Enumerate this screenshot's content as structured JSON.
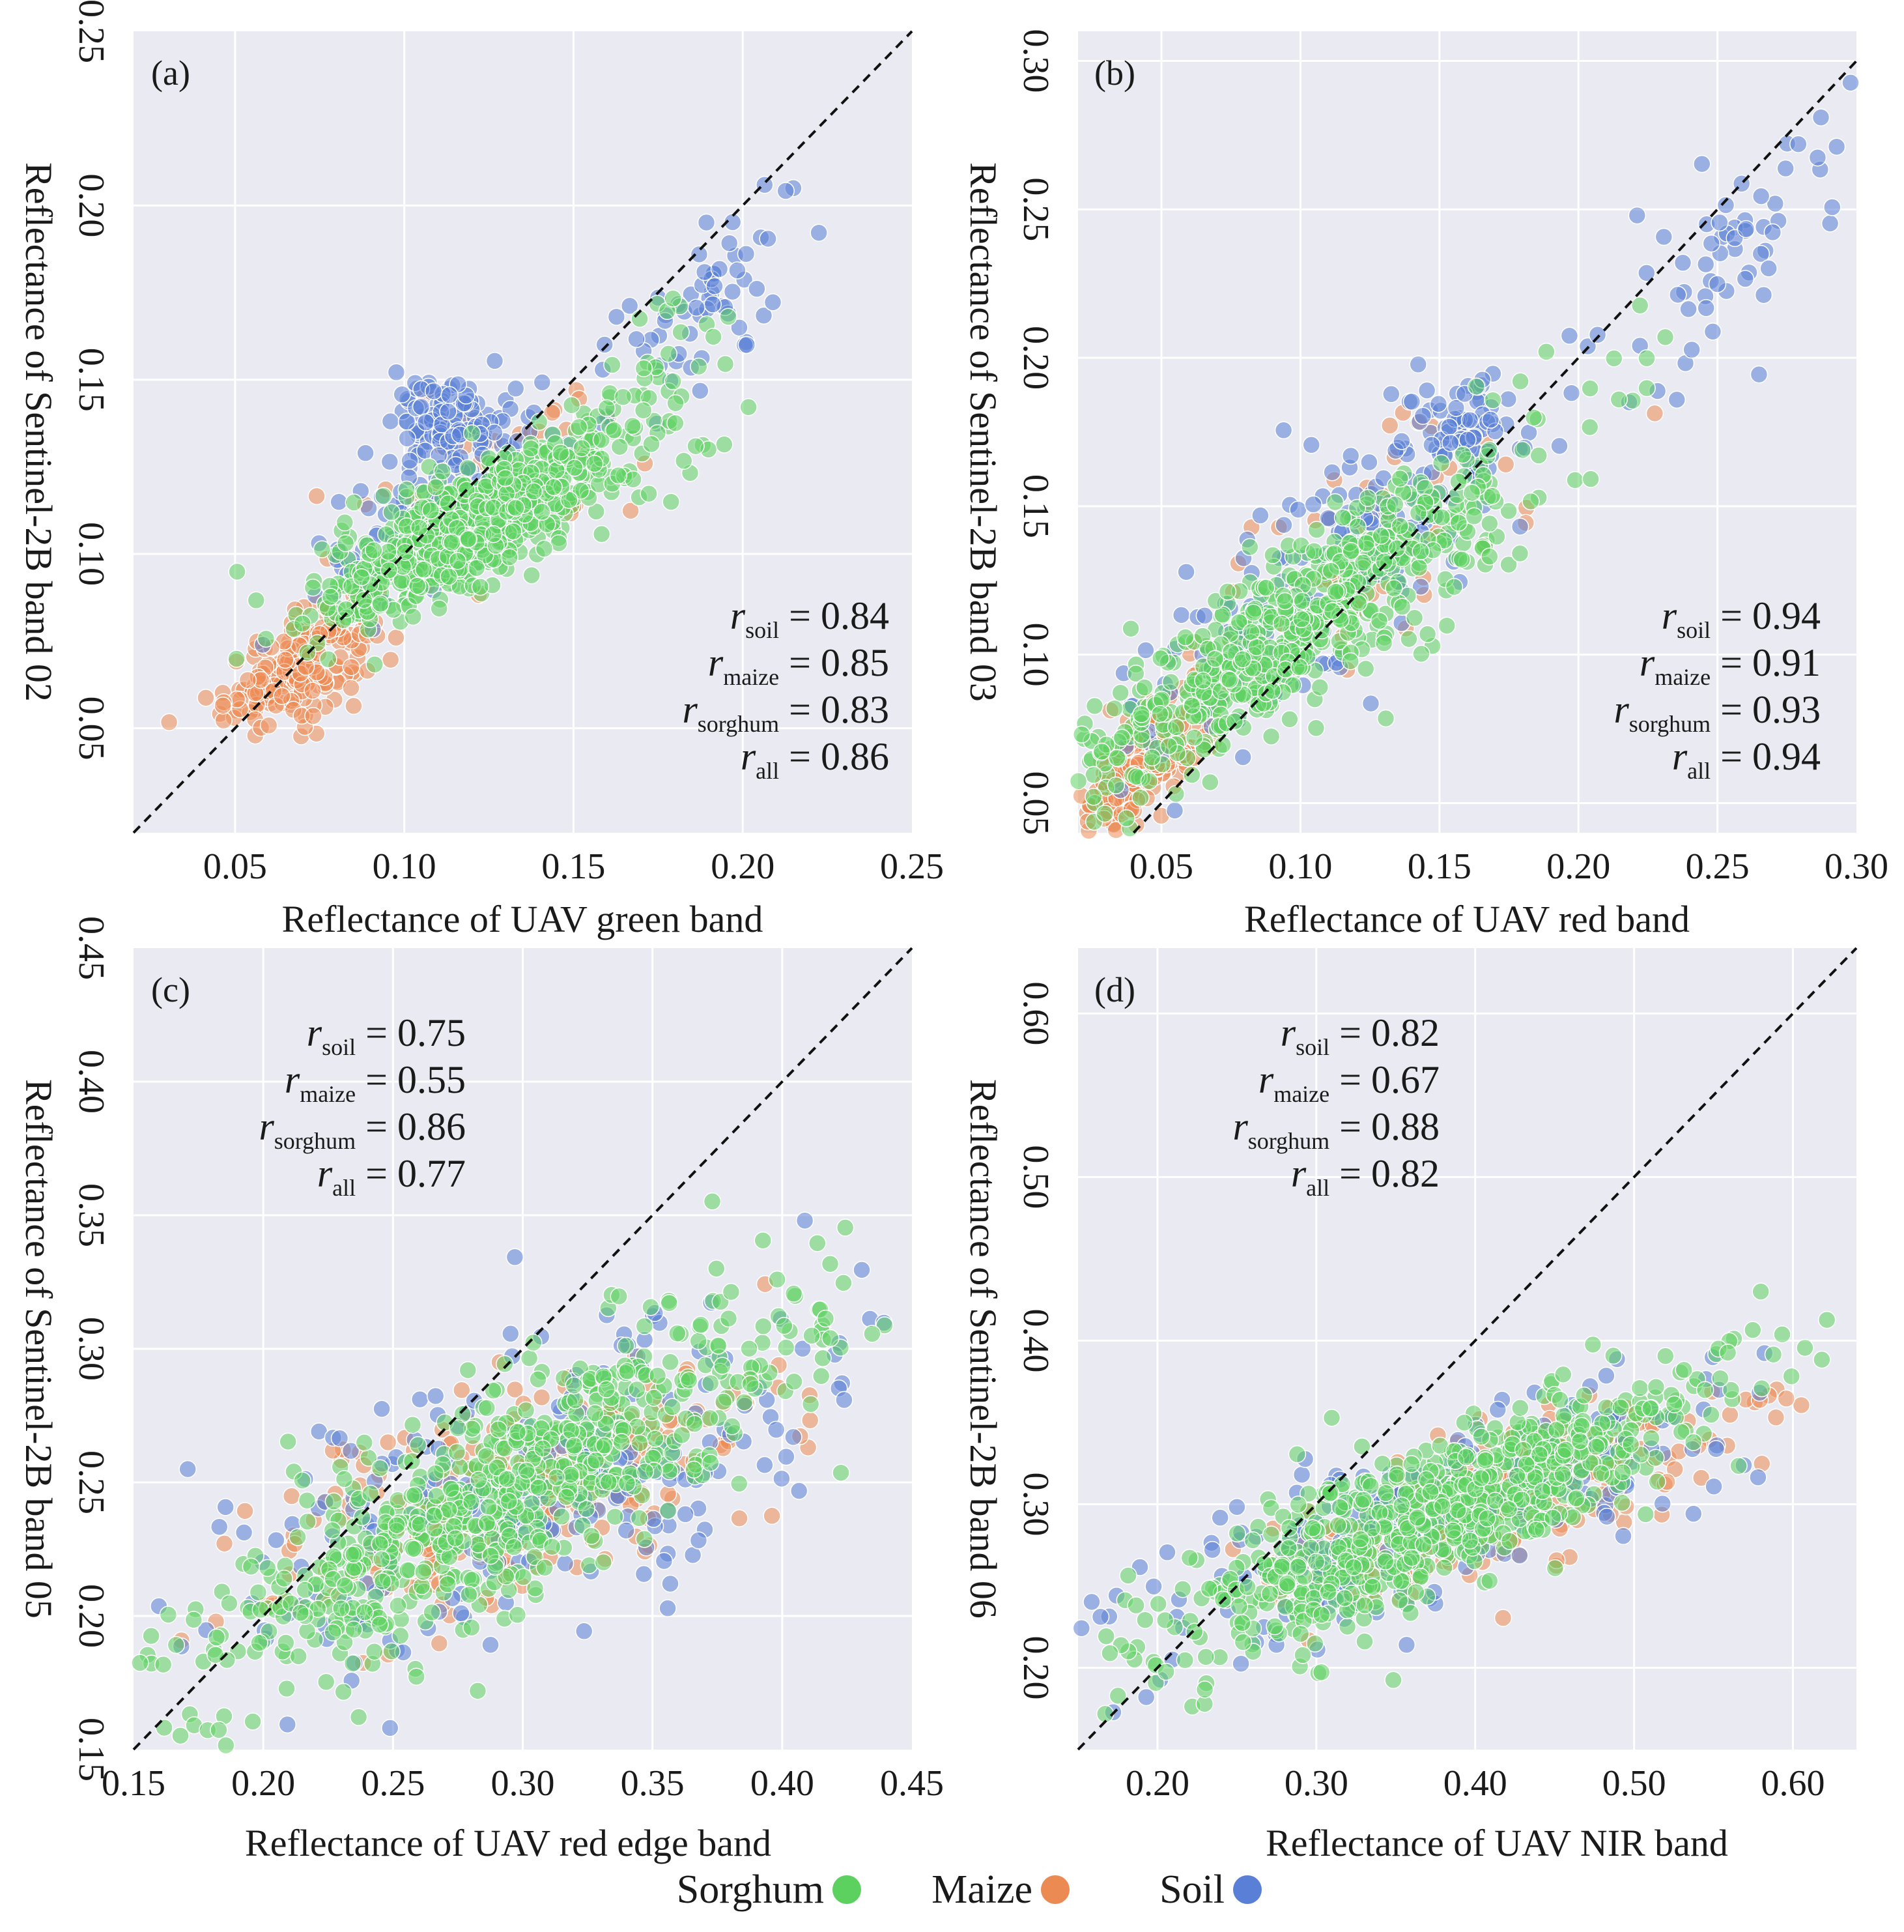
{
  "chart_data": [
    {
      "type": "scatter",
      "panel_label": "(a)",
      "xlabel": "Reflectance of UAV green band",
      "ylabel": "Reflectance of Sentinel-2B band 02",
      "xlim": [
        0.02,
        0.25
      ],
      "ylim": [
        0.02,
        0.25
      ],
      "xticks": [
        "0.05",
        "0.10",
        "0.15",
        "0.20",
        "0.25"
      ],
      "yticks": [
        "0.05",
        "0.10",
        "0.15",
        "0.20",
        "0.25"
      ],
      "tick_values": [
        0.05,
        0.1,
        0.15,
        0.2,
        0.25
      ],
      "identity_line": true,
      "stats_position": "bottom-right",
      "stats": [
        {
          "sub": "soil",
          "value": "= 0.84"
        },
        {
          "sub": "maize",
          "value": "= 0.85"
        },
        {
          "sub": "sorghum",
          "value": "= 0.83"
        },
        {
          "sub": "all",
          "value": "= 0.86"
        }
      ],
      "clusters": [
        {
          "series": "Maize",
          "cx": 0.069,
          "cy": 0.068,
          "sx": 0.011,
          "sy": 0.009,
          "rho": 0.6,
          "n": 200
        },
        {
          "series": "Maize",
          "cx": 0.12,
          "cy": 0.115,
          "sx": 0.025,
          "sy": 0.015,
          "rho": 0.6,
          "n": 50
        },
        {
          "series": "Soil",
          "cx": 0.113,
          "cy": 0.14,
          "sx": 0.008,
          "sy": 0.006,
          "rho": 0.3,
          "n": 90
        },
        {
          "series": "Soil",
          "cx": 0.11,
          "cy": 0.115,
          "sx": 0.018,
          "sy": 0.015,
          "rho": 0.6,
          "n": 120
        },
        {
          "series": "Soil",
          "cx": 0.19,
          "cy": 0.175,
          "sx": 0.013,
          "sy": 0.015,
          "rho": 0.4,
          "n": 60
        },
        {
          "series": "Sorghum",
          "cx": 0.12,
          "cy": 0.108,
          "sx": 0.022,
          "sy": 0.014,
          "rho": 0.8,
          "n": 650
        },
        {
          "series": "Sorghum",
          "cx": 0.17,
          "cy": 0.14,
          "sx": 0.015,
          "sy": 0.015,
          "rho": 0.5,
          "n": 60
        }
      ]
    },
    {
      "type": "scatter",
      "panel_label": "(b)",
      "xlabel": "Reflectance of UAV red band",
      "ylabel": "Reflectance of Sentinel-2B band 03",
      "xlim": [
        0.02,
        0.3
      ],
      "ylim": [
        0.04,
        0.31
      ],
      "xticks": [
        "0.05",
        "0.10",
        "0.15",
        "0.20",
        "0.25",
        "0.30"
      ],
      "yticks": [
        "0.05",
        "0.10",
        "0.15",
        "0.20",
        "0.25",
        "0.30"
      ],
      "tick_values_x": [
        0.05,
        0.1,
        0.15,
        0.2,
        0.25,
        0.3
      ],
      "tick_values_y": [
        0.05,
        0.1,
        0.15,
        0.2,
        0.25,
        0.3
      ],
      "identity_line": true,
      "stats_position": "bottom-right",
      "stats": [
        {
          "sub": "soil",
          "value": "= 0.94"
        },
        {
          "sub": "maize",
          "value": "= 0.91"
        },
        {
          "sub": "sorghum",
          "value": "= 0.93"
        },
        {
          "sub": "all",
          "value": "= 0.94"
        }
      ],
      "clusters": [
        {
          "series": "Maize",
          "cx": 0.045,
          "cy": 0.065,
          "sx": 0.014,
          "sy": 0.015,
          "rho": 0.8,
          "n": 220
        },
        {
          "series": "Maize",
          "cx": 0.12,
          "cy": 0.13,
          "sx": 0.04,
          "sy": 0.03,
          "rho": 0.7,
          "n": 60
        },
        {
          "series": "Soil",
          "cx": 0.11,
          "cy": 0.13,
          "sx": 0.035,
          "sy": 0.03,
          "rho": 0.8,
          "n": 180
        },
        {
          "series": "Soil",
          "cx": 0.155,
          "cy": 0.175,
          "sx": 0.01,
          "sy": 0.01,
          "rho": 0.3,
          "n": 60
        },
        {
          "series": "Soil",
          "cx": 0.25,
          "cy": 0.23,
          "sx": 0.022,
          "sy": 0.022,
          "rho": 0.7,
          "n": 60
        },
        {
          "series": "Sorghum",
          "cx": 0.1,
          "cy": 0.11,
          "sx": 0.045,
          "sy": 0.032,
          "rho": 0.9,
          "n": 600
        }
      ]
    },
    {
      "type": "scatter",
      "panel_label": "(c)",
      "xlabel": "Reflectance of UAV red edge band",
      "ylabel": "Reflectance of Sentinel-2B band 05",
      "xlim": [
        0.15,
        0.45
      ],
      "ylim": [
        0.15,
        0.45
      ],
      "xticks": [
        "0.15",
        "0.20",
        "0.25",
        "0.30",
        "0.35",
        "0.40",
        "0.45"
      ],
      "yticks": [
        "0.15",
        "0.20",
        "0.25",
        "0.30",
        "0.35",
        "0.40",
        "0.45"
      ],
      "tick_values": [
        0.15,
        0.2,
        0.25,
        0.3,
        0.35,
        0.4,
        0.45
      ],
      "identity_line": true,
      "stats_position": "top-left",
      "stats": [
        {
          "sub": "soil",
          "value": "= 0.75"
        },
        {
          "sub": "maize",
          "value": "= 0.55"
        },
        {
          "sub": "sorghum",
          "value": "= 0.86"
        },
        {
          "sub": "all",
          "value": "= 0.77"
        }
      ],
      "clusters": [
        {
          "series": "Maize",
          "cx": 0.3,
          "cy": 0.245,
          "sx": 0.05,
          "sy": 0.025,
          "rho": 0.6,
          "n": 260
        },
        {
          "series": "Soil",
          "cx": 0.3,
          "cy": 0.245,
          "sx": 0.06,
          "sy": 0.035,
          "rho": 0.6,
          "n": 260
        },
        {
          "series": "Sorghum",
          "cx": 0.29,
          "cy": 0.245,
          "sx": 0.06,
          "sy": 0.038,
          "rho": 0.85,
          "n": 700
        }
      ]
    },
    {
      "type": "scatter",
      "panel_label": "(d)",
      "xlabel": "Reflectance of UAV NIR band",
      "ylabel": "Reflectance of Sentinel-2B band 06",
      "xlim": [
        0.15,
        0.64
      ],
      "ylim": [
        0.15,
        0.64
      ],
      "xticks": [
        "0.20",
        "0.30",
        "0.40",
        "0.50",
        "0.60"
      ],
      "yticks": [
        "0.20",
        "0.30",
        "0.40",
        "0.50",
        "0.60"
      ],
      "tick_values": [
        0.2,
        0.3,
        0.4,
        0.5,
        0.6
      ],
      "identity_line": true,
      "stats_position": "top-left",
      "stats": [
        {
          "sub": "soil",
          "value": "= 0.82"
        },
        {
          "sub": "maize",
          "value": "= 0.67"
        },
        {
          "sub": "sorghum",
          "value": "= 0.88"
        },
        {
          "sub": "all",
          "value": "= 0.82"
        }
      ],
      "clusters": [
        {
          "series": "Maize",
          "cx": 0.41,
          "cy": 0.3,
          "sx": 0.07,
          "sy": 0.03,
          "rho": 0.7,
          "n": 280
        },
        {
          "series": "Soil",
          "cx": 0.37,
          "cy": 0.29,
          "sx": 0.09,
          "sy": 0.04,
          "rho": 0.75,
          "n": 260
        },
        {
          "series": "Sorghum",
          "cx": 0.37,
          "cy": 0.29,
          "sx": 0.09,
          "sy": 0.045,
          "rho": 0.85,
          "n": 700
        }
      ]
    }
  ],
  "legend": [
    {
      "name": "Sorghum",
      "color": "#5dd160"
    },
    {
      "name": "Maize",
      "color": "#ec8a54"
    },
    {
      "name": "Soil",
      "color": "#5a7fd6"
    }
  ],
  "stat_symbol": "r",
  "colors": {
    "Sorghum": "#5dd160",
    "Maize": "#ec8a54",
    "Soil": "#5a7fd6",
    "panel_background": "#eaeaf2",
    "grid": "#ffffff"
  }
}
